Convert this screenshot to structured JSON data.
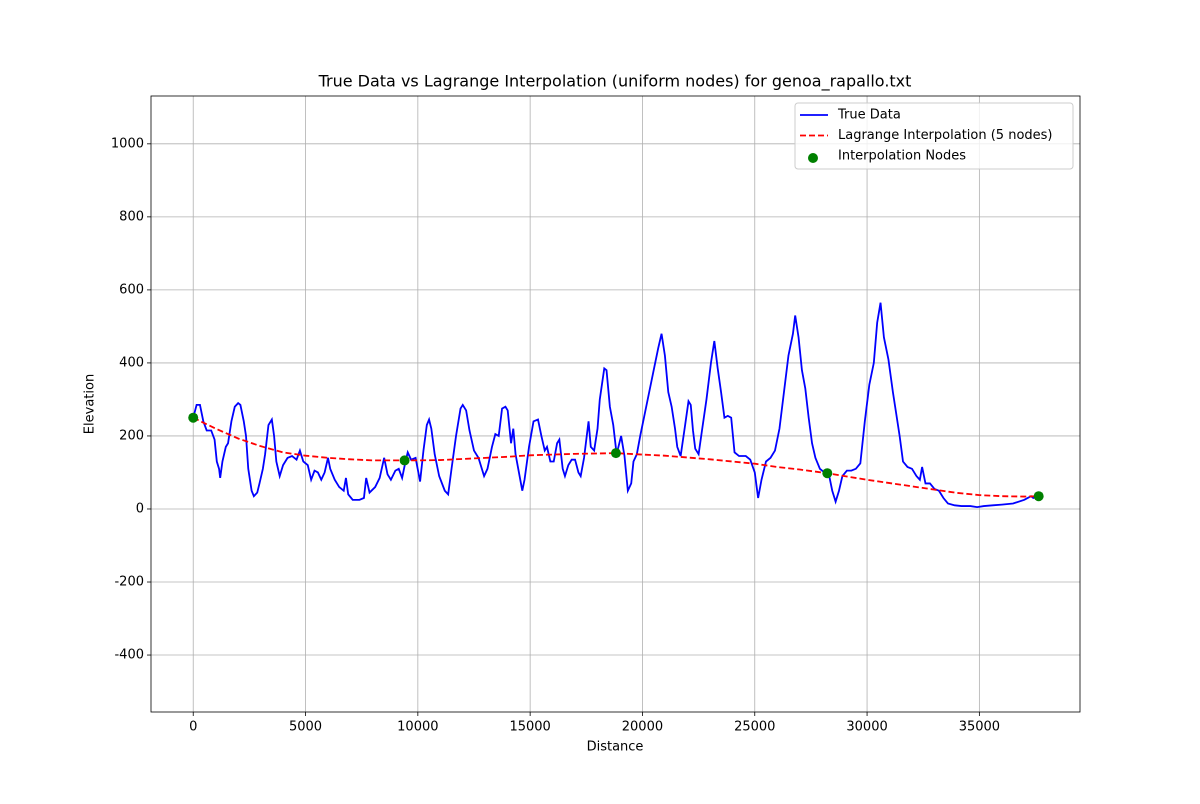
{
  "chart_data": {
    "type": "line",
    "title": "True Data vs Lagrange Interpolation (uniform nodes) for genoa_rapallo.txt",
    "x_label": "Distance",
    "y_label": "Elevation",
    "xlim": [
      -1880,
      39480
    ],
    "ylim": [
      -556,
      1131
    ],
    "xticks": [
      0,
      5000,
      10000,
      15000,
      20000,
      25000,
      30000,
      35000
    ],
    "yticks": [
      -400,
      -200,
      0,
      200,
      400,
      600,
      800,
      1000
    ],
    "grid": true,
    "legend": "upper right",
    "series": [
      {
        "name": "True Data",
        "type": "line",
        "color": "#0000ff",
        "linestyle": "solid",
        "x": [
          0,
          150,
          300,
          450,
          600,
          800,
          950,
          1050,
          1150,
          1200,
          1300,
          1450,
          1550,
          1700,
          1850,
          2000,
          2100,
          2250,
          2350,
          2450,
          2600,
          2700,
          2850,
          2950,
          3100,
          3200,
          3350,
          3500,
          3600,
          3700,
          3850,
          4000,
          4200,
          4400,
          4600,
          4750,
          4900,
          5100,
          5250,
          5400,
          5550,
          5700,
          5850,
          6000,
          6100,
          6300,
          6500,
          6700,
          6800,
          6900,
          7100,
          7400,
          7600,
          7700,
          7850,
          8100,
          8300,
          8500,
          8650,
          8800,
          9000,
          9150,
          9300,
          9450,
          9550,
          9700,
          9900,
          10100,
          10250,
          10400,
          10500,
          10600,
          10750,
          10950,
          11200,
          11350,
          11500,
          11700,
          11900,
          12000,
          12150,
          12300,
          12500,
          12700,
          12950,
          13100,
          13300,
          13450,
          13600,
          13750,
          13900,
          14000,
          14150,
          14250,
          14350,
          14500,
          14650,
          14750,
          14950,
          15150,
          15350,
          15500,
          15650,
          15750,
          15900,
          16050,
          16200,
          16300,
          16450,
          16550,
          16700,
          16850,
          17000,
          17150,
          17250,
          17400,
          17600,
          17700,
          17850,
          18000,
          18100,
          18300,
          18400,
          18550,
          18700,
          18850,
          19050,
          19200,
          19350,
          19500,
          19600,
          19750,
          19900,
          20100,
          20300,
          20500,
          20700,
          20850,
          21000,
          21150,
          21300,
          21450,
          21550,
          21700,
          21900,
          22050,
          22150,
          22250,
          22350,
          22500,
          22650,
          22850,
          23050,
          23200,
          23350,
          23500,
          23650,
          23800,
          23950,
          24100,
          24300,
          24600,
          24800,
          25000,
          25150,
          25300,
          25500,
          25700,
          25900,
          26100,
          26300,
          26500,
          26700,
          26800,
          26950,
          27100,
          27250,
          27400,
          27550,
          27700,
          27900,
          28100,
          28300,
          28450,
          28600,
          28750,
          28900,
          29100,
          29300,
          29500,
          29700,
          29900,
          30100,
          30300,
          30450,
          30600,
          30750,
          30950,
          31150,
          31300,
          31450,
          31600,
          31800,
          32000,
          32200,
          32350,
          32450,
          32600,
          32800,
          33000,
          33200,
          33400,
          33600,
          33900,
          34200,
          34600,
          34900,
          35200,
          35600,
          36000,
          36500,
          37000,
          37300,
          37400,
          37640
        ],
        "values": [
          250,
          285,
          285,
          240,
          215,
          215,
          190,
          130,
          110,
          85,
          130,
          170,
          180,
          240,
          280,
          290,
          285,
          240,
          200,
          110,
          50,
          35,
          45,
          70,
          110,
          150,
          230,
          245,
          200,
          130,
          90,
          120,
          140,
          145,
          135,
          160,
          130,
          120,
          80,
          105,
          100,
          80,
          100,
          140,
          110,
          80,
          60,
          50,
          85,
          40,
          25,
          25,
          30,
          85,
          45,
          60,
          85,
          140,
          95,
          80,
          105,
          110,
          85,
          130,
          155,
          135,
          140,
          75,
          160,
          230,
          245,
          220,
          150,
          90,
          50,
          40,
          110,
          200,
          275,
          285,
          270,
          215,
          160,
          140,
          90,
          110,
          170,
          205,
          200,
          275,
          280,
          270,
          180,
          220,
          150,
          100,
          50,
          80,
          170,
          240,
          245,
          200,
          160,
          170,
          130,
          130,
          180,
          190,
          110,
          90,
          120,
          135,
          135,
          100,
          90,
          140,
          240,
          170,
          160,
          220,
          300,
          385,
          380,
          280,
          230,
          150,
          200,
          145,
          50,
          70,
          130,
          150,
          200,
          260,
          320,
          380,
          440,
          480,
          420,
          320,
          280,
          220,
          170,
          145,
          230,
          295,
          285,
          215,
          165,
          150,
          215,
          300,
          400,
          460,
          385,
          320,
          250,
          255,
          250,
          155,
          145,
          145,
          135,
          100,
          30,
          80,
          130,
          140,
          160,
          220,
          320,
          420,
          480,
          530,
          470,
          380,
          330,
          250,
          180,
          140,
          110,
          100,
          95,
          50,
          20,
          50,
          90,
          105,
          105,
          110,
          125,
          240,
          340,
          400,
          510,
          565,
          470,
          410,
          320,
          260,
          200,
          130,
          115,
          110,
          90,
          80,
          115,
          70,
          70,
          55,
          50,
          30,
          15,
          10,
          8,
          8,
          5,
          8,
          10,
          12,
          15,
          25,
          35,
          30,
          35
        ]
      },
      {
        "name": "Lagrange Interpolation (5 nodes)",
        "type": "line",
        "color": "#ff0000",
        "linestyle": "dashed",
        "x": [
          0,
          1000,
          2000,
          3000,
          4000,
          5000,
          6000,
          7000,
          8000,
          9410,
          10000,
          11000,
          12000,
          13000,
          14000,
          15000,
          16000,
          17000,
          18000,
          18820,
          20000,
          21000,
          22000,
          23000,
          24000,
          25000,
          26000,
          27000,
          28230,
          29000,
          30000,
          31000,
          32000,
          33000,
          34000,
          35000,
          36000,
          37000,
          37640
        ],
        "values": [
          250,
          220,
          193,
          172,
          155,
          146,
          140,
          136,
          133,
          133,
          133,
          134,
          137,
          140,
          143,
          147,
          149,
          151,
          152,
          153,
          149,
          146,
          141,
          136,
          130,
          124,
          115,
          108,
          98,
          90,
          80,
          71,
          62,
          53,
          44,
          38,
          35,
          34,
          35
        ]
      },
      {
        "name": "Interpolation Nodes",
        "type": "scatter",
        "color": "#008000",
        "x": [
          0,
          9410,
          18820,
          28230,
          37640
        ],
        "values": [
          250,
          133,
          153,
          98,
          35
        ]
      }
    ]
  }
}
